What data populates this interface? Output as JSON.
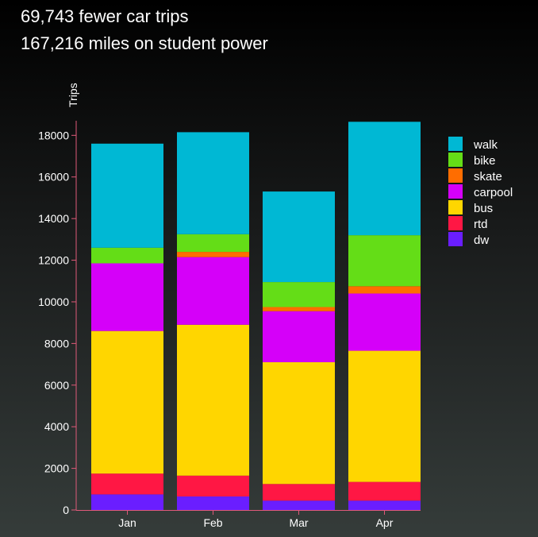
{
  "headlines": {
    "line1": "69,743 fewer car trips",
    "line2": "167,216 miles on student power"
  },
  "chart_data": {
    "type": "bar",
    "stacked": true,
    "title": "",
    "xlabel": "",
    "ylabel": "Trips",
    "ylim": [
      0,
      18700
    ],
    "yticks": [
      0,
      2000,
      4000,
      6000,
      8000,
      10000,
      12000,
      14000,
      16000,
      18000
    ],
    "grid": false,
    "legend_position": "top-right",
    "categories": [
      "Jan",
      "Feb",
      "Mar",
      "Apr"
    ],
    "series": [
      {
        "name": "dw",
        "color": "#6a1eff",
        "values": [
          750,
          650,
          450,
          450
        ]
      },
      {
        "name": "rtd",
        "color": "#ff1744",
        "values": [
          1000,
          1000,
          800,
          900
        ]
      },
      {
        "name": "bus",
        "color": "#ffd600",
        "values": [
          6850,
          7250,
          5850,
          6300
        ]
      },
      {
        "name": "carpool",
        "color": "#d500f9",
        "values": [
          3250,
          3250,
          2450,
          2750
        ]
      },
      {
        "name": "skate",
        "color": "#ff6d00",
        "values": [
          0,
          250,
          200,
          350
        ]
      },
      {
        "name": "bike",
        "color": "#64dd17",
        "values": [
          750,
          850,
          1200,
          2450
        ]
      },
      {
        "name": "walk",
        "color": "#00b8d4",
        "values": [
          5000,
          4900,
          4350,
          5450
        ]
      }
    ],
    "legend_order": [
      "walk",
      "bike",
      "skate",
      "carpool",
      "bus",
      "rtd",
      "dw"
    ]
  }
}
